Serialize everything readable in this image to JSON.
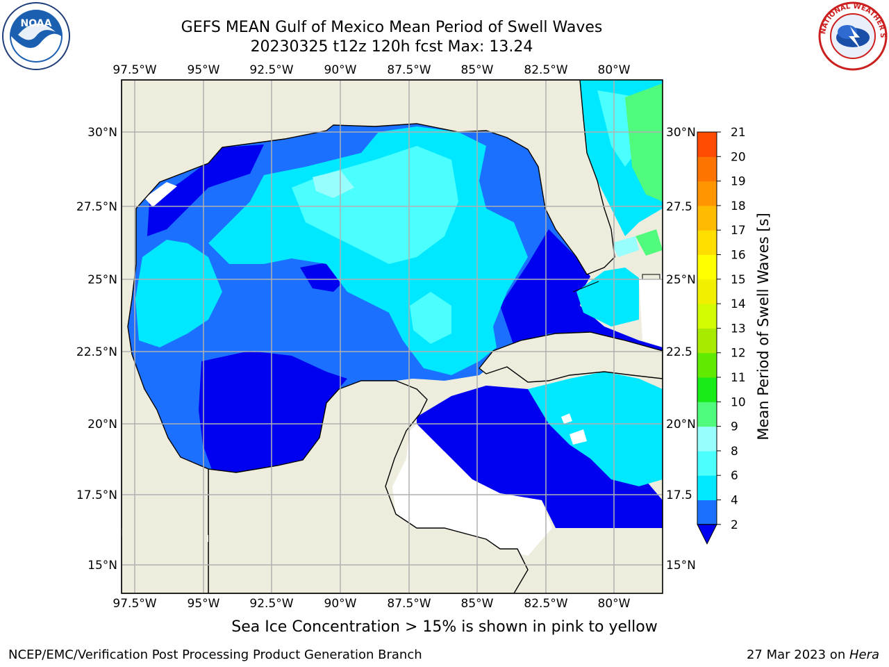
{
  "title": {
    "line1": "GEFS MEAN Gulf of Mexico Mean Period of Swell Waves",
    "line2": "20230325 t12z 120h fcst   Max: 13.24"
  },
  "logos": {
    "left": {
      "icon": "noaa-logo",
      "text": "NOAA"
    },
    "right": {
      "icon": "nws-logo",
      "text": "NATIONAL WEATHER SERVICE"
    }
  },
  "map": {
    "lon_labels": [
      "97.5°W",
      "95°W",
      "92.5°W",
      "90°W",
      "87.5°W",
      "85°W",
      "82.5°W",
      "80°W"
    ],
    "lat_labels_left": [
      "30°N",
      "27.5°N",
      "25°N",
      "22.5°N",
      "20°N",
      "17.5°N",
      "15°N"
    ],
    "lat_labels_right": [
      "30°N",
      "27.5",
      "25°N",
      "22.5",
      "20°N",
      "17.5",
      "15°N"
    ],
    "colors": {
      "land": "#eeecdd",
      "nodata": "#ffffff",
      "grid": "#b0b0b0",
      "coast": "#000000"
    }
  },
  "colorbar": {
    "label": "Mean Period of Swell Waves [s]",
    "ticks": [
      "2",
      "4",
      "6",
      "8",
      "9",
      "10",
      "11",
      "12",
      "13",
      "14",
      "15",
      "16",
      "17",
      "18",
      "19",
      "20",
      "21"
    ],
    "colors": [
      "#1c70ff",
      "#00e8ff",
      "#4cffff",
      "#98fdfd",
      "#50fa7c",
      "#18eb18",
      "#60ea00",
      "#a8ea00",
      "#d2fa00",
      "#f0f000",
      "#ffff00",
      "#ffde00",
      "#ffbb00",
      "#ff9500",
      "#ff7400",
      "#ff4a00",
      "#ff1800"
    ],
    "extend_color": "#0000f0"
  },
  "footer": {
    "note": "Sea Ice Concentration > 15% is shown in pink to yellow",
    "credit_left": "NCEP/EMC/Verification Post Processing Product Generation Branch",
    "date": "27 Mar 2023 on ",
    "host": "Hera"
  }
}
